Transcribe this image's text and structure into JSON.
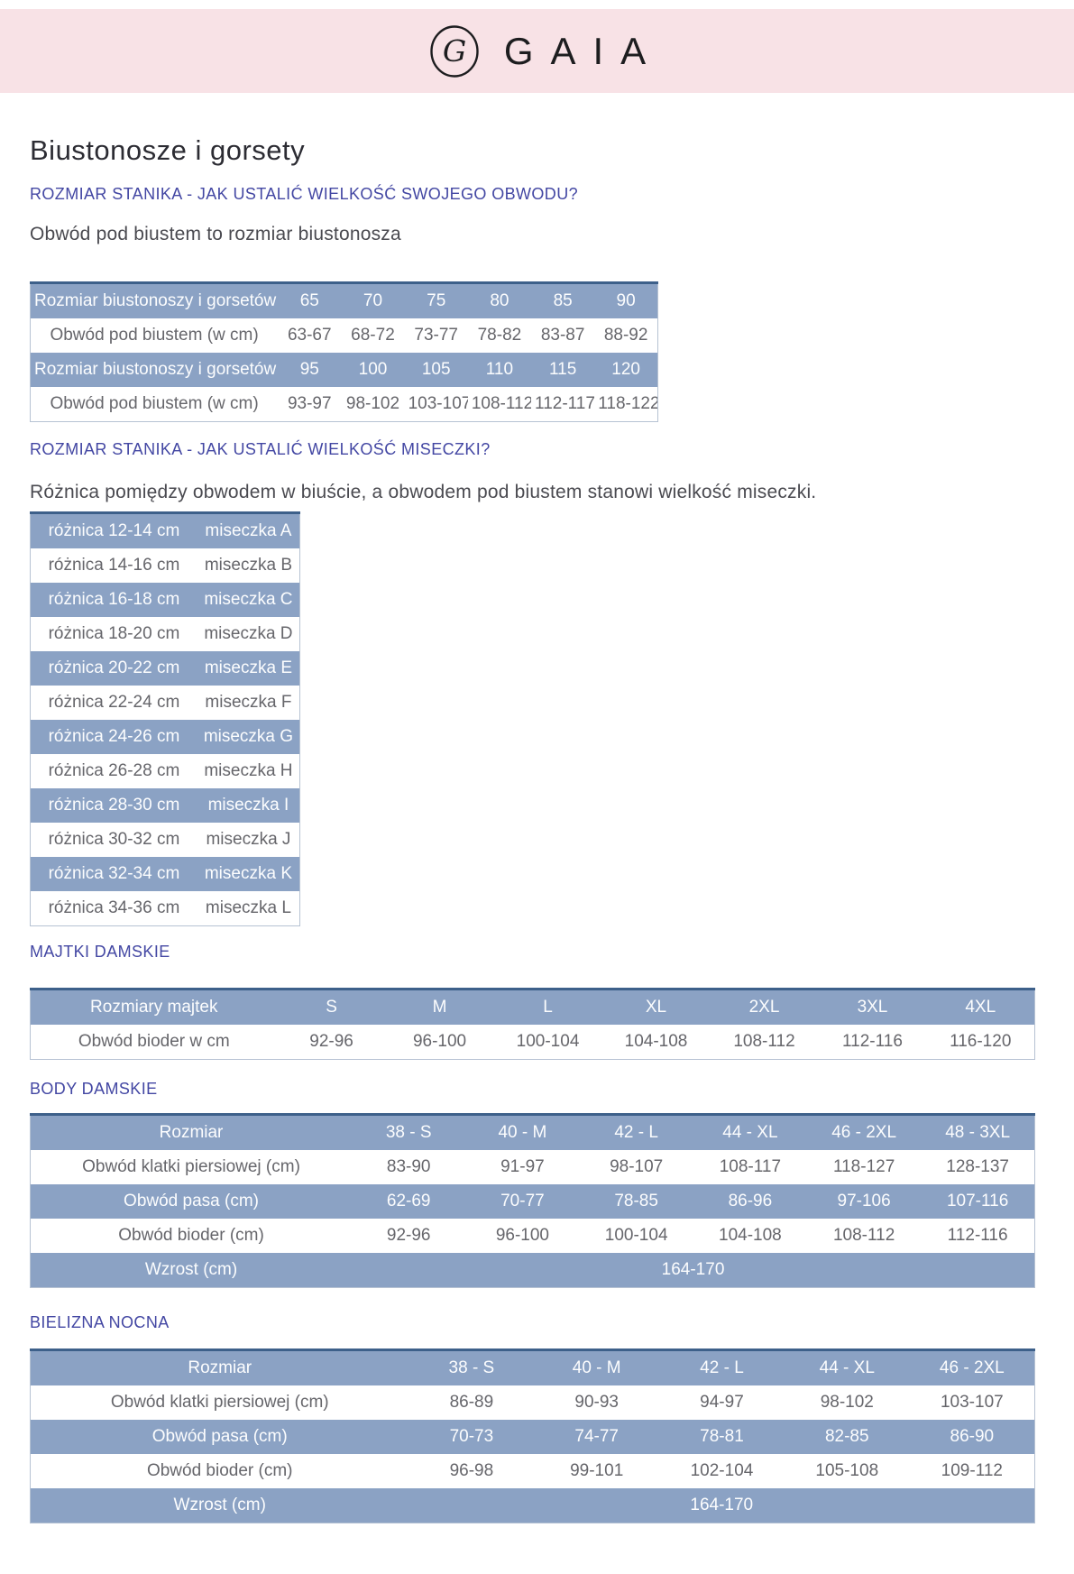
{
  "brand": {
    "name": "GAIA"
  },
  "page_title": "Biustonosze i gorsety",
  "colors": {
    "header_pink": "#f8e2e6",
    "heading_blue": "#4347a3",
    "row_blue": "#8ba2c4",
    "table_border_dark": "#3d608a"
  },
  "sections": {
    "obwod": {
      "heading": "ROZMIAR STANIKA - JAK USTALIĆ WIELKOŚĆ SWOJEGO OBWODU?",
      "intro": "Obwód pod biustem to rozmiar biustonosza",
      "table": {
        "col_widths": [
          "39.5%",
          "10.1%",
          "10.1%",
          "10.1%",
          "10.1%",
          "10.1%",
          "10.1%"
        ],
        "rows": [
          {
            "variant": "blue",
            "cells": [
              "Rozmiar biustonoszy i gorsetów",
              "65",
              "70",
              "75",
              "80",
              "85",
              "90"
            ]
          },
          {
            "variant": "white",
            "cells": [
              "Obwód pod biustem (w cm)",
              "63-67",
              "68-72",
              "73-77",
              "78-82",
              "83-87",
              "88-92"
            ]
          },
          {
            "variant": "blue",
            "cells": [
              "Rozmiar biustonoszy i gorsetów",
              "95",
              "100",
              "105",
              "110",
              "115",
              "120"
            ]
          },
          {
            "variant": "white",
            "cells": [
              "Obwód pod biustem (w cm)",
              "93-97",
              "98-102",
              "103-107",
              "108-112",
              "112-117",
              "118-122"
            ]
          }
        ]
      }
    },
    "miseczka": {
      "heading": "ROZMIAR STANIKA - JAK USTALIĆ WIELKOŚĆ MISECZKI?",
      "intro": "Różnica pomiędzy obwodem w biuście, a obwodem pod biustem stanowi wielkość miseczki.",
      "table": {
        "col_widths": [
          "62%",
          "38%"
        ],
        "rows": [
          {
            "variant": "blue",
            "cells": [
              "różnica 12-14 cm",
              "miseczka A"
            ]
          },
          {
            "variant": "white",
            "cells": [
              "różnica 14-16 cm",
              "miseczka B"
            ]
          },
          {
            "variant": "blue",
            "cells": [
              "różnica 16-18 cm",
              "miseczka C"
            ]
          },
          {
            "variant": "white",
            "cells": [
              "różnica 18-20 cm",
              "miseczka D"
            ]
          },
          {
            "variant": "blue",
            "cells": [
              "różnica 20-22 cm",
              "miseczka E"
            ]
          },
          {
            "variant": "white",
            "cells": [
              "różnica 22-24 cm",
              "miseczka F"
            ]
          },
          {
            "variant": "blue",
            "cells": [
              "różnica 24-26 cm",
              "miseczka G"
            ]
          },
          {
            "variant": "white",
            "cells": [
              "różnica 26-28 cm",
              "miseczka H"
            ]
          },
          {
            "variant": "blue",
            "cells": [
              "różnica 28-30 cm",
              "miseczka I"
            ]
          },
          {
            "variant": "white",
            "cells": [
              "różnica 30-32 cm",
              "miseczka J"
            ]
          },
          {
            "variant": "blue",
            "cells": [
              "różnica 32-34 cm",
              "miseczka K"
            ]
          },
          {
            "variant": "white",
            "cells": [
              "różnica 34-36 cm",
              "miseczka L"
            ]
          }
        ]
      }
    },
    "majtki": {
      "heading": "MAJTKI DAMSKIE",
      "table": {
        "col_widths": [
          "24.6%",
          "10.77%",
          "10.77%",
          "10.77%",
          "10.77%",
          "10.77%",
          "10.77%",
          "10.77%"
        ],
        "rows": [
          {
            "variant": "blue",
            "cells": [
              "Rozmiary majtek",
              "S",
              "M",
              "L",
              "XL",
              "2XL",
              "3XL",
              "4XL"
            ]
          },
          {
            "variant": "white",
            "cells": [
              "Obwód bioder w cm",
              "92-96",
              "96-100",
              "100-104",
              "104-108",
              "108-112",
              "112-116",
              "116-120"
            ]
          }
        ]
      }
    },
    "body": {
      "heading": "BODY DAMSKIE",
      "table": {
        "col_widths": [
          "32%",
          "11.33%",
          "11.33%",
          "11.33%",
          "11.33%",
          "11.33%",
          "11.33%"
        ],
        "rows": [
          {
            "variant": "blue",
            "cells": [
              "Rozmiar",
              "38 - S",
              "40 - M",
              "42 - L",
              "44 - XL",
              "46 - 2XL",
              "48 - 3XL"
            ]
          },
          {
            "variant": "white",
            "cells": [
              "Obwód klatki piersiowej (cm)",
              "83-90",
              "91-97",
              "98-107",
              "108-117",
              "118-127",
              "128-137"
            ]
          },
          {
            "variant": "blue",
            "cells": [
              "Obwód pasa (cm)",
              "62-69",
              "70-77",
              "78-85",
              "86-96",
              "97-106",
              "107-116"
            ]
          },
          {
            "variant": "white",
            "cells": [
              "Obwód bioder (cm)",
              "92-96",
              "96-100",
              "100-104",
              "104-108",
              "108-112",
              "112-116"
            ]
          },
          {
            "variant": "blue",
            "cells": [
              "Wzrost (cm)",
              {
                "text": "164-170",
                "span": 6
              }
            ]
          }
        ]
      }
    },
    "nocna": {
      "heading": "BIELIZNA NOCNA",
      "table": {
        "col_widths": [
          "37.7%",
          "12.46%",
          "12.46%",
          "12.46%",
          "12.46%",
          "12.46%"
        ],
        "rows": [
          {
            "variant": "blue",
            "cells": [
              "Rozmiar",
              "38 - S",
              "40 - M",
              "42 - L",
              "44 - XL",
              "46 - 2XL"
            ]
          },
          {
            "variant": "white",
            "cells": [
              "Obwód klatki piersiowej (cm)",
              "86-89",
              "90-93",
              "94-97",
              "98-102",
              "103-107"
            ]
          },
          {
            "variant": "blue",
            "cells": [
              "Obwód pasa (cm)",
              "70-73",
              "74-77",
              "78-81",
              "82-85",
              "86-90"
            ]
          },
          {
            "variant": "white",
            "cells": [
              "Obwód bioder (cm)",
              "96-98",
              "99-101",
              "102-104",
              "105-108",
              "109-112"
            ]
          },
          {
            "variant": "blue",
            "cells": [
              "Wzrost (cm)",
              {
                "text": "164-170",
                "span": 5
              }
            ]
          }
        ]
      }
    }
  }
}
